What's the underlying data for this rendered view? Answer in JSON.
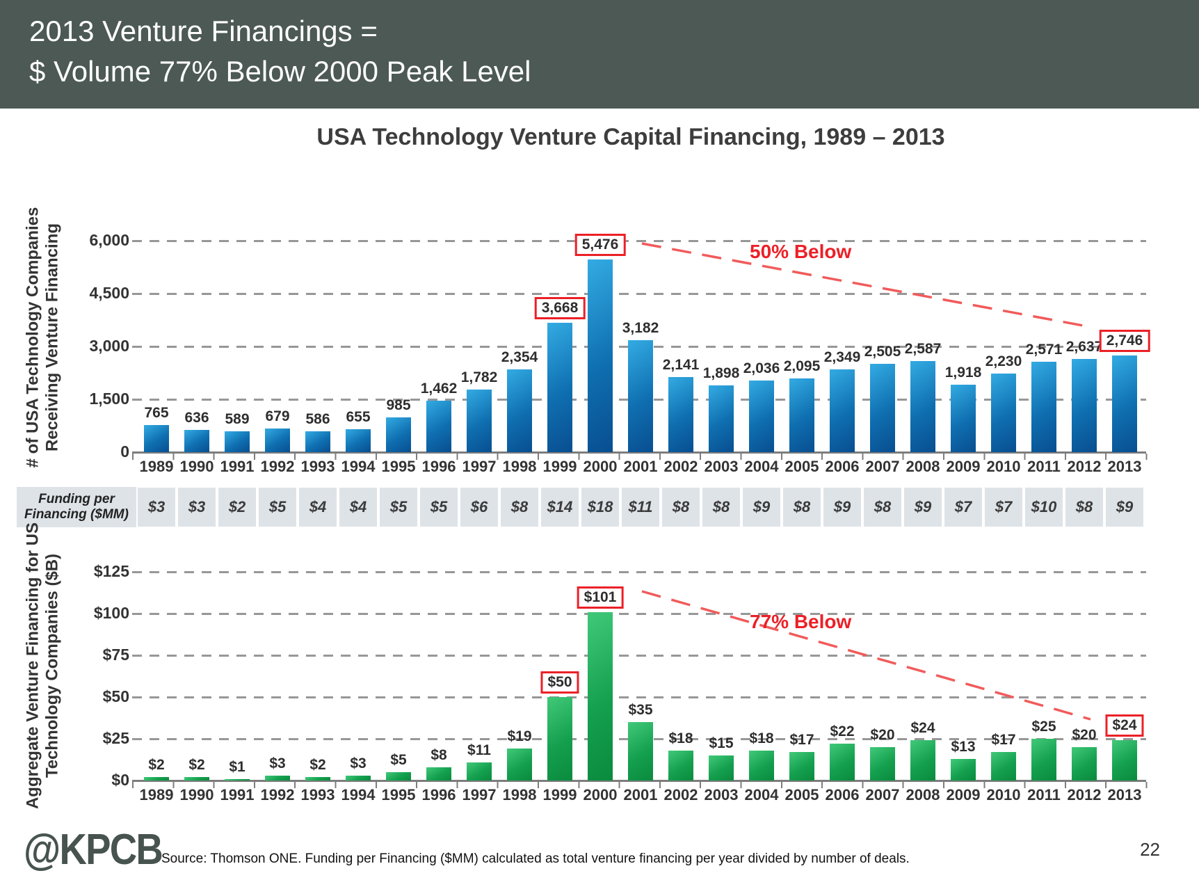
{
  "slide": {
    "header": {
      "title_line1": "2013 Venture Financings =",
      "title_line2": "$ Volume 77% Below 2000 Peak Level",
      "bg_color": "#4C5955"
    },
    "chart_title": "USA Technology Venture Capital Financing, 1989 – 2013",
    "footer": {
      "logo": "@KPCB",
      "source": "Source: Thomson ONE. Funding per Financing ($MM) calculated as total venture financing per year divided by number of deals.",
      "page_number": "22"
    }
  },
  "colors": {
    "bar_blue": "#1179BE",
    "bar_green": "#14A04F",
    "annotation_red": "#EC2027",
    "strip_cell_bg": "#DEE3E8",
    "header_bg": "#4C5955"
  },
  "chart_data": [
    {
      "type": "bar",
      "title": "USA Technology Venture Capital Financing, 1989 – 2013",
      "ylabel": "# of USA Technology Companies Receiving Venture Financing",
      "categories": [
        "1989",
        "1990",
        "1991",
        "1992",
        "1993",
        "1994",
        "1995",
        "1996",
        "1997",
        "1998",
        "1999",
        "2000",
        "2001",
        "2002",
        "2003",
        "2004",
        "2005",
        "2006",
        "2007",
        "2008",
        "2009",
        "2010",
        "2011",
        "2012",
        "2013"
      ],
      "values": [
        765,
        636,
        589,
        679,
        586,
        655,
        985,
        1462,
        1782,
        2354,
        3668,
        5476,
        3182,
        2141,
        1898,
        2036,
        2095,
        2349,
        2505,
        2587,
        1918,
        2230,
        2571,
        2637,
        2746
      ],
      "labels": [
        "765",
        "636",
        "589",
        "679",
        "586",
        "655",
        "985",
        "1,462",
        "1,782",
        "2,354",
        "3,668",
        "5,476",
        "3,182",
        "2,141",
        "1,898",
        "2,036",
        "2,095",
        "2,349",
        "2,505",
        "2,587",
        "1,918",
        "2,230",
        "2,571",
        "2,637",
        "2,746"
      ],
      "boxed_indices": [
        10,
        11,
        24
      ],
      "yticks": [
        "0",
        "1,500",
        "3,000",
        "4,500",
        "6,000"
      ],
      "ylim": [
        0,
        6000
      ],
      "grid": true,
      "legend": "none",
      "annotation": "50% Below",
      "annotation_meaning": "2013 count of 2,746 is ~50% below the 2000 peak of 5,476"
    },
    {
      "type": "bar",
      "title": "Aggregate Venture Financing",
      "ylabel": "Aggregate Venture Financing for US Technology Companies ($B)",
      "categories": [
        "1989",
        "1990",
        "1991",
        "1992",
        "1993",
        "1994",
        "1995",
        "1996",
        "1997",
        "1998",
        "1999",
        "2000",
        "2001",
        "2002",
        "2003",
        "2004",
        "2005",
        "2006",
        "2007",
        "2008",
        "2009",
        "2010",
        "2011",
        "2012",
        "2013"
      ],
      "values": [
        2,
        2,
        1,
        3,
        2,
        3,
        5,
        8,
        11,
        19,
        50,
        101,
        35,
        18,
        15,
        18,
        17,
        22,
        20,
        24,
        13,
        17,
        25,
        20,
        24
      ],
      "labels": [
        "$2",
        "$2",
        "$1",
        "$3",
        "$2",
        "$3",
        "$5",
        "$8",
        "$11",
        "$19",
        "$50",
        "$101",
        "$35",
        "$18",
        "$15",
        "$18",
        "$17",
        "$22",
        "$20",
        "$24",
        "$13",
        "$17",
        "$25",
        "$20",
        "$24"
      ],
      "boxed_indices": [
        10,
        11,
        24
      ],
      "yticks": [
        "$0",
        "$25",
        "$50",
        "$75",
        "$100",
        "$125"
      ],
      "ylim": [
        0,
        125
      ],
      "grid": true,
      "legend": "none",
      "annotation": "77% Below",
      "annotation_meaning": "2013 volume of $24B is 77% below the 2000 peak of $101B"
    }
  ],
  "funding_strip": {
    "label": "Funding per Financing ($MM)",
    "values": [
      "$3",
      "$3",
      "$2",
      "$5",
      "$4",
      "$4",
      "$5",
      "$5",
      "$6",
      "$8",
      "$14",
      "$18",
      "$11",
      "$8",
      "$8",
      "$9",
      "$8",
      "$9",
      "$8",
      "$9",
      "$7",
      "$7",
      "$10",
      "$8",
      "$9"
    ]
  }
}
